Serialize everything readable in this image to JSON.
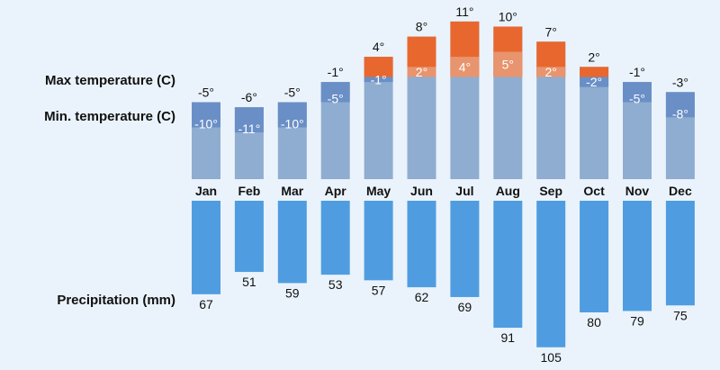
{
  "labels": {
    "max_temperature": "Max temperature (C)",
    "min_temperature": "Min. temperature (C)",
    "precipitation": "Precipitation (mm)"
  },
  "colors": {
    "background": "#eaf3fb",
    "temp_base": "#8fadd0",
    "min_block": "#6a8fc6",
    "max_block": "#e8672e",
    "max_block_light": "#e8946e",
    "precip_bar": "#4f9de0"
  },
  "chart_data": {
    "type": "bar",
    "title": "",
    "categories": [
      "Jan",
      "Feb",
      "Mar",
      "Apr",
      "May",
      "Jun",
      "Jul",
      "Aug",
      "Sep",
      "Oct",
      "Nov",
      "Dec"
    ],
    "series": [
      {
        "name": "Max temperature (C)",
        "values": [
          -5,
          -6,
          -5,
          -1,
          4,
          8,
          11,
          10,
          7,
          2,
          -1,
          -3
        ]
      },
      {
        "name": "Min. temperature (C)",
        "values": [
          -10,
          -11,
          -10,
          -5,
          -1,
          2,
          4,
          5,
          2,
          -2,
          -5,
          -8
        ]
      },
      {
        "name": "Precipitation (mm)",
        "values": [
          67,
          51,
          59,
          53,
          57,
          62,
          69,
          91,
          105,
          80,
          79,
          75
        ]
      }
    ],
    "unit_temperature": "°",
    "grid": false,
    "legend": "none"
  }
}
